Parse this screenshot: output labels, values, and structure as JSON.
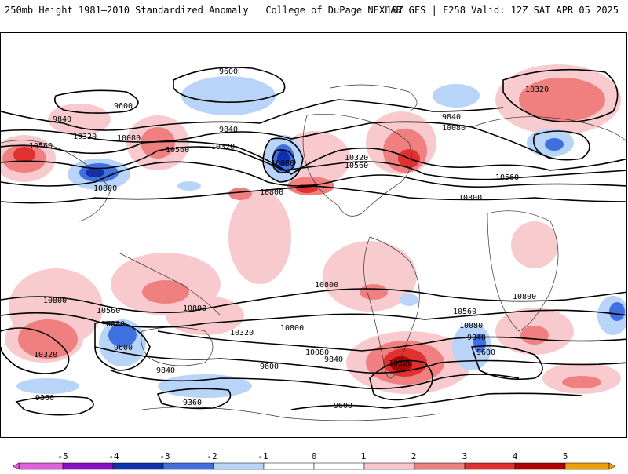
{
  "header": {
    "title": "250mb Height 1981–2010 Standardized Anomaly | College of DuPage NEXLAB",
    "run_info": "18Z GFS | F258 Valid: 12Z SAT APR 05 2025"
  },
  "colors": {
    "anomaly_scale": [
      {
        "value": -5,
        "color": "#e060e0"
      },
      {
        "value": -4,
        "color": "#8a10c8"
      },
      {
        "value": -3,
        "color": "#1030b0"
      },
      {
        "value": -2,
        "color": "#4070e0"
      },
      {
        "value": -1,
        "color": "#b8d4f8"
      },
      {
        "value": 0,
        "color": "#ffffff"
      },
      {
        "value": 1,
        "color": "#f8c8cc"
      },
      {
        "value": 2,
        "color": "#f08080"
      },
      {
        "value": 3,
        "color": "#e03030"
      },
      {
        "value": 4,
        "color": "#b00000"
      },
      {
        "value": 5,
        "color": "#f0a000"
      }
    ]
  },
  "colorbar": {
    "tick_labels": [
      "-5",
      "-4",
      "-3",
      "-2",
      "-1",
      "0",
      "1",
      "2",
      "3",
      "4",
      "5"
    ]
  },
  "contour_labels": [
    "9600",
    "9600",
    "9840",
    "9840",
    "9840",
    "10080",
    "10080",
    "10320",
    "10320",
    "10320",
    "10560",
    "10560",
    "10560",
    "10560",
    "10800",
    "10800",
    "10800",
    "10080",
    "10320",
    "10560",
    "10800",
    "10800",
    "10800",
    "10800",
    "10560",
    "10560",
    "10320",
    "10080",
    "10080",
    "9840",
    "9600",
    "10320",
    "10320",
    "10800",
    "10560",
    "10080",
    "9840",
    "9600",
    "9600",
    "9840",
    "9600",
    "9360",
    "9360",
    "9600",
    "10320",
    "10080"
  ]
}
